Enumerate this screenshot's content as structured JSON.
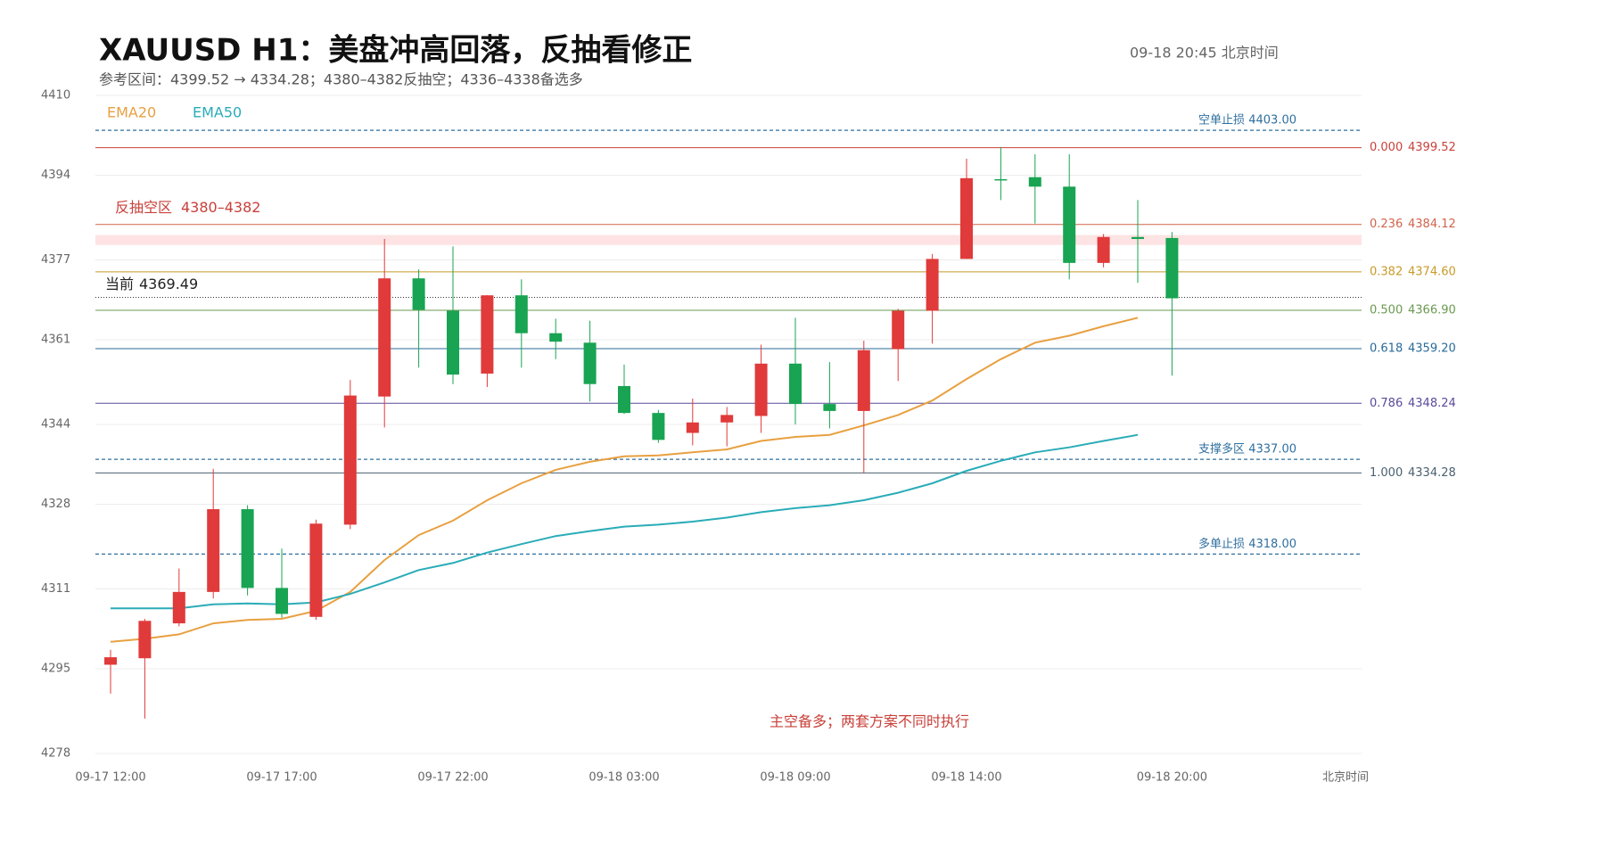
{
  "chart_data": {
    "type": "candlestick",
    "title": "XAUUSD  H1：美盘冲高回落，反抽看修正",
    "subtitle": "参考区间：4399.52 → 4334.28；4380–4382反抽空；4336–4338备选多",
    "timestamp": "09-18  20:45 北京时间",
    "x_axis_label": "北京时间",
    "annotation": "主空备多；两套方案不同时执行",
    "ylim": [
      4278,
      4410
    ],
    "yticks": [
      4278,
      4295,
      4311,
      4328,
      4344,
      4361,
      4377,
      4394,
      4410
    ],
    "grid": true,
    "up_color": "#e03a3a",
    "down_color": "#18a452",
    "categories": [
      "09-17 12:00",
      null,
      null,
      null,
      null,
      "09-17 17:00",
      null,
      null,
      null,
      null,
      "09-17 22:00",
      null,
      null,
      null,
      null,
      "09-18 03:00",
      null,
      null,
      null,
      null,
      "09-18 09:00",
      null,
      null,
      null,
      null,
      "09-18 14:00",
      null,
      null,
      null,
      null,
      null,
      "09-18 20:00"
    ],
    "ohlc": {
      "open": [
        4295.8,
        4297.1,
        4304.1,
        4310.4,
        4327.0,
        4311.2,
        4305.4,
        4323.9,
        4349.6,
        4373.3,
        4366.8,
        4354.2,
        4369.9,
        4362.3,
        4360.4,
        4351.7,
        4346.3,
        4342.3,
        4344.4,
        4345.7,
        4356.2,
        4348.1,
        4346.7,
        4359.1,
        4366.8,
        4377.2,
        4393.2,
        4393.6,
        4391.7,
        4376.4,
        4381.6,
        4381.4
      ],
      "high": [
        4298.8,
        4305.0,
        4315.1,
        4335.1,
        4327.8,
        4319.1,
        4324.9,
        4352.9,
        4381.2,
        4375.1,
        4379.7,
        4369.9,
        4373.1,
        4365.2,
        4364.8,
        4356.0,
        4346.9,
        4349.2,
        4347.5,
        4360.0,
        4365.4,
        4356.5,
        4360.8,
        4367.2,
        4378.2,
        4397.3,
        4399.6,
        4398.2,
        4398.2,
        4382.2,
        4389.0,
        4382.6
      ],
      "low": [
        4290.0,
        4285.0,
        4303.5,
        4309.1,
        4309.7,
        4305.2,
        4304.8,
        4323.0,
        4343.4,
        4355.4,
        4352.1,
        4351.5,
        4355.4,
        4357.1,
        4348.6,
        4346.1,
        4340.3,
        4339.8,
        4339.6,
        4342.3,
        4344.0,
        4343.2,
        4334.2,
        4352.7,
        4360.2,
        4377.2,
        4389.0,
        4384.3,
        4373.1,
        4375.5,
        4372.4,
        4353.8
      ],
      "close": [
        4297.3,
        4304.6,
        4310.4,
        4327.0,
        4311.2,
        4306.0,
        4324.1,
        4349.8,
        4373.3,
        4367.0,
        4354.0,
        4369.9,
        4362.3,
        4360.6,
        4352.1,
        4346.3,
        4340.9,
        4344.4,
        4345.9,
        4356.2,
        4348.1,
        4346.7,
        4358.9,
        4366.8,
        4377.2,
        4393.4,
        4393.0,
        4391.7,
        4376.4,
        4381.6,
        4381.2,
        4369.3
      ]
    },
    "lines": [
      {
        "name": "EMA20",
        "color": "#e8a040",
        "values": [
          4300.4,
          4301.0,
          4301.9,
          4304.1,
          4304.8,
          4305.0,
          4306.6,
          4310.4,
          4316.8,
          4321.8,
          4324.7,
          4328.8,
          4332.2,
          4334.9,
          4336.5,
          4337.6,
          4337.8,
          4338.4,
          4339.0,
          4340.7,
          4341.5,
          4341.9,
          4343.8,
          4345.9,
          4348.8,
          4353.1,
          4357.1,
          4360.4,
          4361.8,
          4363.7,
          4365.4,
          null
        ]
      },
      {
        "name": "EMA50",
        "color": "#2aacb8",
        "values": [
          4307.1,
          4307.1,
          4307.1,
          4307.9,
          4308.1,
          4307.9,
          4308.3,
          4310.0,
          4312.3,
          4314.8,
          4316.2,
          4318.3,
          4320.0,
          4321.6,
          4322.6,
          4323.5,
          4323.9,
          4324.5,
          4325.3,
          4326.4,
          4327.2,
          4327.8,
          4328.8,
          4330.3,
          4332.2,
          4334.7,
          4336.7,
          4338.4,
          4339.4,
          4340.7,
          4341.9,
          null
        ]
      }
    ],
    "stops": [
      {
        "label": "空单止损",
        "value": 4403.0,
        "value_label": "4403.00",
        "color": "#2f6f9f"
      },
      {
        "label": "支撑多区",
        "value": 4337.0,
        "value_label": "4337.00",
        "color": "#2f6f9f"
      },
      {
        "label": "多单止损",
        "value": 4318.0,
        "value_label": "4318.00",
        "color": "#2f6f9f"
      }
    ],
    "fib": [
      {
        "ratio": "0.000",
        "value": 4399.52,
        "value_label": "4399.52",
        "color": "#c9403a"
      },
      {
        "ratio": "0.236",
        "value": 4384.12,
        "value_label": "4384.12",
        "color": "#d0644c"
      },
      {
        "ratio": "0.382",
        "value": 4374.6,
        "value_label": "4374.60",
        "color": "#c89a28"
      },
      {
        "ratio": "0.500",
        "value": 4366.9,
        "value_label": "4366.90",
        "color": "#6a9a50"
      },
      {
        "ratio": "0.618",
        "value": 4359.2,
        "value_label": "4359.20",
        "color": "#2a6a9a"
      },
      {
        "ratio": "0.786",
        "value": 4348.24,
        "value_label": "4348.24",
        "color": "#5a4a9a"
      },
      {
        "ratio": "1.000",
        "value": 4334.28,
        "value_label": "4334.28",
        "color": "#4a6070"
      }
    ],
    "zone": {
      "label": "反抽空区",
      "range_label": "4380–4382",
      "low": 4380,
      "high": 4382,
      "color": "#c9403a"
    },
    "current": {
      "label": "当前",
      "value": 4369.49
    }
  }
}
